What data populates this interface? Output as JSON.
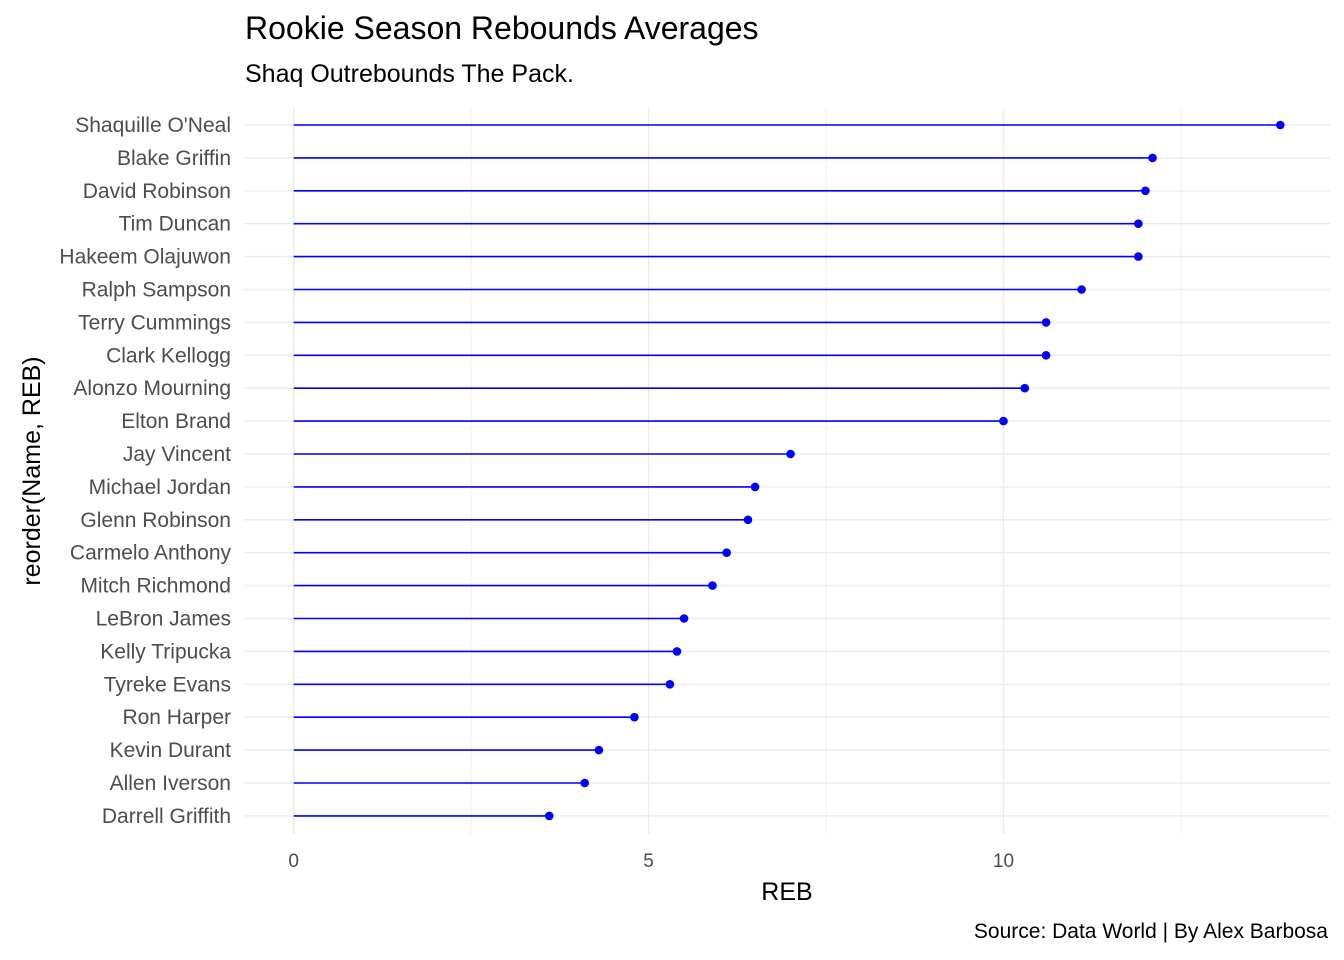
{
  "chart_data": {
    "type": "lollipop",
    "title": "Rookie Season Rebounds Averages",
    "subtitle": "Shaq Outrebounds The Pack.",
    "caption": "Source: Data World | By Alex Barbosa",
    "xlabel": "REB",
    "ylabel": "reorder(Name, REB)",
    "xlim": [
      -0.7,
      14.6
    ],
    "xticks": [
      0,
      5,
      10
    ],
    "grid": true,
    "color": "#0000ff",
    "categories": [
      "Shaquille O'Neal",
      "Blake Griffin",
      "David Robinson",
      "Tim Duncan",
      "Hakeem Olajuwon",
      "Ralph Sampson",
      "Terry Cummings",
      "Clark Kellogg",
      "Alonzo Mourning",
      "Elton Brand",
      "Jay Vincent",
      "Michael Jordan",
      "Glenn Robinson",
      "Carmelo Anthony",
      "Mitch Richmond",
      "LeBron James",
      "Kelly Tripucka",
      "Tyreke Evans",
      "Ron Harper",
      "Kevin Durant",
      "Allen Iverson",
      "Darrell Griffith"
    ],
    "values": [
      13.9,
      12.1,
      12.0,
      11.9,
      11.9,
      11.1,
      10.6,
      10.6,
      10.3,
      10.0,
      7.0,
      6.5,
      6.4,
      6.1,
      5.9,
      5.5,
      5.4,
      5.3,
      4.8,
      4.3,
      4.1,
      3.6
    ]
  }
}
